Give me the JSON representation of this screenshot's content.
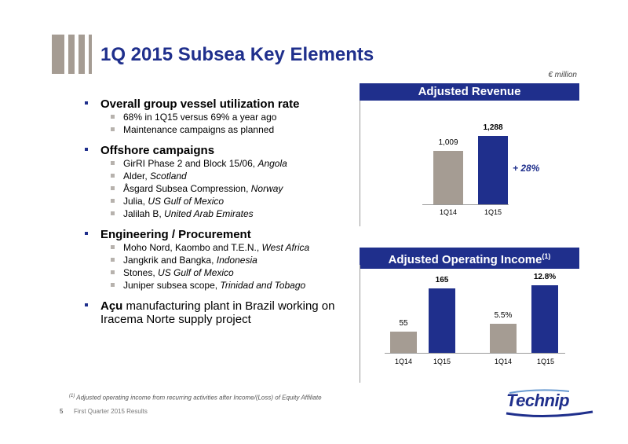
{
  "title": "1Q 2015 Subsea Key Elements",
  "unit_label": "€ million",
  "bullets": [
    {
      "label": "Overall group vessel utilization rate",
      "subs": [
        {
          "text": "68% in 1Q15 versus 69% a year ago",
          "italic": ""
        },
        {
          "text": "Maintenance campaigns as planned",
          "italic": ""
        }
      ]
    },
    {
      "label": "Offshore campaigns",
      "subs": [
        {
          "text": "GirRI Phase 2 and Block 15/06, ",
          "italic": "Angola"
        },
        {
          "text": "Alder, ",
          "italic": "Scotland"
        },
        {
          "text": "Åsgard Subsea Compression, ",
          "italic": "Norway"
        },
        {
          "text": "Julia, ",
          "italic": "US Gulf of Mexico"
        },
        {
          "text": "Jalilah B, ",
          "italic": "United Arab Emirates"
        }
      ]
    },
    {
      "label": "Engineering / Procurement",
      "subs": [
        {
          "text": "Moho Nord, Kaombo and T.E.N., ",
          "italic": "West Africa"
        },
        {
          "text": "Jangkrik and Bangka, ",
          "italic": "Indonesia"
        },
        {
          "text": "Stones, ",
          "italic": "US Gulf of Mexico"
        },
        {
          "text": "Juniper subsea scope, ",
          "italic": "Trinidad and Tobago"
        }
      ]
    },
    {
      "label_bold": "Açu",
      "label_rest": " manufacturing plant in Brazil working on Iracema Norte supply project"
    }
  ],
  "chart_data": [
    {
      "type": "bar",
      "title": "Adjusted Revenue",
      "categories": [
        "1Q14",
        "1Q15"
      ],
      "values": [
        1009,
        1288
      ],
      "labels": [
        "1,009",
        "1,288"
      ],
      "growth_label": "+ 28%",
      "colors": [
        "#a59c93",
        "#1f2f8c"
      ]
    },
    {
      "type": "bar",
      "title": "Adjusted Operating Income",
      "title_sup": "(1)",
      "groups": [
        {
          "categories": [
            "1Q14",
            "1Q15"
          ],
          "values": [
            55,
            165
          ],
          "labels": [
            "55",
            "165"
          ]
        },
        {
          "categories": [
            "1Q14",
            "1Q15"
          ],
          "values": [
            5.5,
            12.8
          ],
          "labels": [
            "5.5%",
            "12.8%"
          ]
        }
      ],
      "colors": [
        "#a59c93",
        "#1f2f8c"
      ]
    }
  ],
  "footnote": {
    "sup": "(1)",
    "text": " Adjusted operating income from recurring activities after Income/(Loss) of Equity Affiliate"
  },
  "page_number": "5",
  "footer_text": "First Quarter 2015 Results",
  "logo_text": "Technip"
}
